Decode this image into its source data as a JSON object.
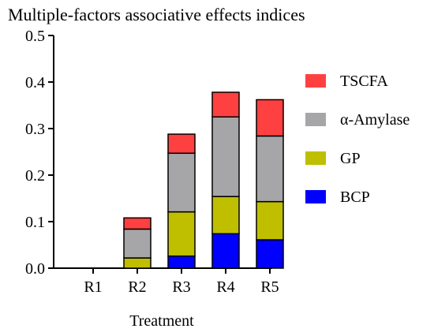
{
  "chart_data": {
    "type": "bar",
    "stacked": true,
    "title": "Multiple-factors associative effects indices",
    "xlabel": "Treatment",
    "ylabel": "",
    "categories": [
      "R1",
      "R2",
      "R3",
      "R4",
      "R5"
    ],
    "ylim": [
      0,
      0.5
    ],
    "yticks": [
      "0.0",
      "0.1",
      "0.2",
      "0.3",
      "0.4",
      "0.5"
    ],
    "series": [
      {
        "name": "BCP",
        "color": "#0000ff",
        "values": [
          0,
          0,
          0.026,
          0.074,
          0.061
        ]
      },
      {
        "name": "GP",
        "color": "#bfbf00",
        "values": [
          0,
          0.022,
          0.095,
          0.08,
          0.082
        ]
      },
      {
        "name": "α-Amylase",
        "color": "#a6a6a8",
        "values": [
          0,
          0.062,
          0.126,
          0.171,
          0.141
        ]
      },
      {
        "name": "TSCFA",
        "color": "#ff4040",
        "values": [
          0,
          0.024,
          0.041,
          0.053,
          0.078
        ]
      }
    ],
    "legend_order": [
      "TSCFA",
      "α-Amylase",
      "GP",
      "BCP"
    ],
    "legend_position": "right",
    "grid": false
  }
}
